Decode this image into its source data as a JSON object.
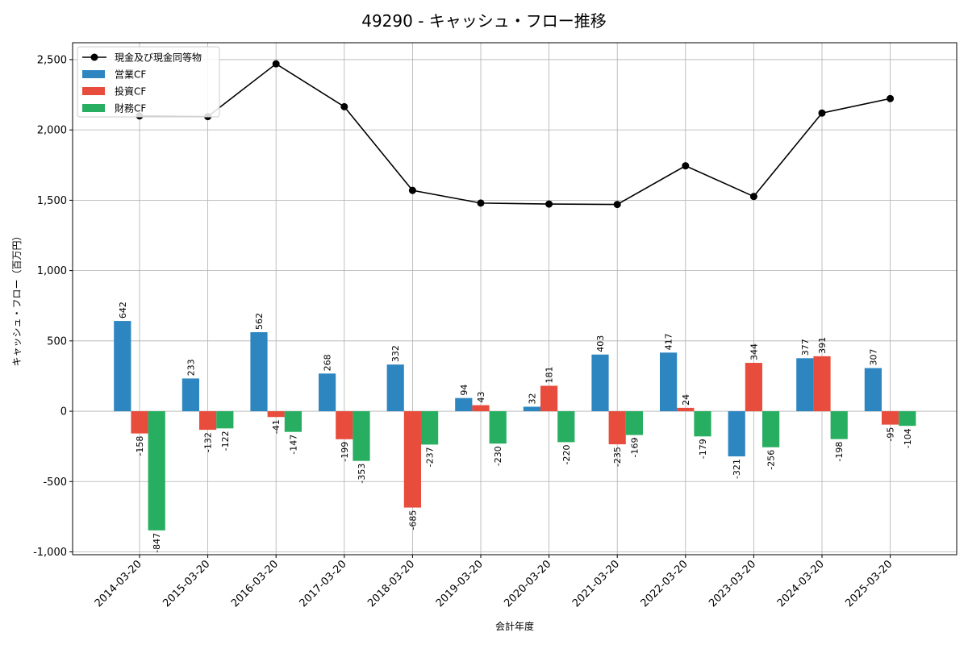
{
  "chart_data": {
    "type": "bar",
    "title": "49290 - キャッシュ・フロー推移",
    "xlabel": "会計年度",
    "ylabel": "キャッシュ・フロー（百万円）",
    "ylim": [
      -1020,
      2620
    ],
    "yticks": [
      -1000,
      -500,
      0,
      500,
      1000,
      1500,
      2000,
      2500
    ],
    "ytick_labels": [
      "-1,000",
      "-500",
      "0",
      "500",
      "1,000",
      "1,500",
      "2,000",
      "2,500"
    ],
    "grid": true,
    "legend_position": "top-left",
    "categories": [
      "2014-03-20",
      "2015-03-20",
      "2016-03-20",
      "2017-03-20",
      "2018-03-20",
      "2019-03-20",
      "2020-03-20",
      "2021-03-20",
      "2022-03-20",
      "2023-03-20",
      "2024-03-20",
      "2025-03-20"
    ],
    "series": [
      {
        "name": "営業CF",
        "type": "bar",
        "color": "#2e86c1",
        "values": [
          642,
          233,
          562,
          268,
          332,
          94,
          32,
          403,
          417,
          -321,
          377,
          307
        ]
      },
      {
        "name": "投資CF",
        "type": "bar",
        "color": "#e74c3c",
        "values": [
          -158,
          -132,
          -41,
          -199,
          -685,
          43,
          181,
          -235,
          24,
          344,
          391,
          -95
        ]
      },
      {
        "name": "財務CF",
        "type": "bar",
        "color": "#27ae60",
        "values": [
          -847,
          -122,
          -147,
          -353,
          -237,
          -230,
          -220,
          -169,
          -179,
          -256,
          -198,
          -104
        ]
      },
      {
        "name": "現金及び現金同等物",
        "type": "line",
        "color": "#000000",
        "values": [
          2100,
          2095,
          2470,
          2165,
          1570,
          1480,
          1473,
          1470,
          1745,
          1527,
          2120,
          2223
        ]
      }
    ]
  }
}
